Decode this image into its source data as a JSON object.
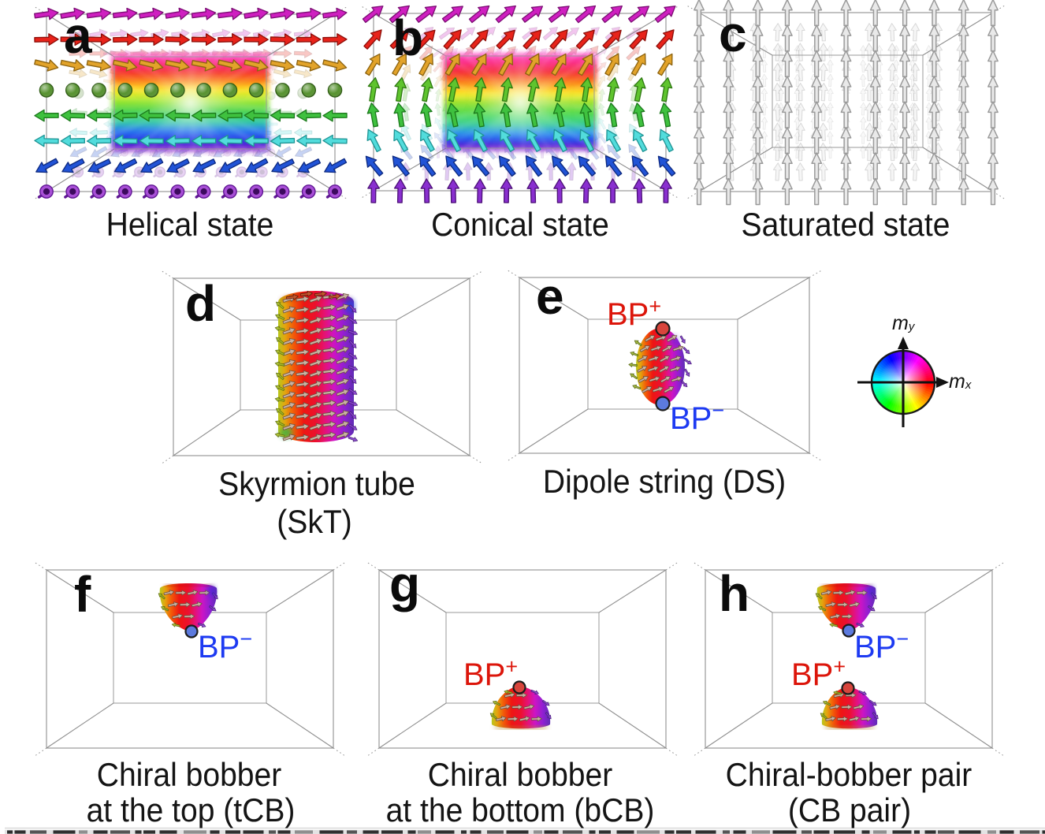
{
  "panels": [
    {
      "letter": "a",
      "caption_lines": [
        "Helical state"
      ],
      "state": "helical state",
      "spin_rows": [
        {
          "glyph": "arrow",
          "fill": "#cf1fc0",
          "edge": "#7c0e74",
          "angle": 8
        },
        {
          "glyph": "arrow",
          "fill": "#e8231a",
          "edge": "#8e0f0a",
          "angle": 0
        },
        {
          "glyph": "arrow",
          "fill": "#e2a32a",
          "edge": "#8e6410",
          "angle": -12
        },
        {
          "glyph": "sphere-out",
          "fill": "#579230",
          "edge": "#2f5c14",
          "angle": 0
        },
        {
          "glyph": "arrow",
          "fill": "#3fc13f",
          "edge": "#1c7a1c",
          "angle": 180
        },
        {
          "glyph": "arrow",
          "fill": "#52dcdc",
          "edge": "#1f9595",
          "angle": 180
        },
        {
          "glyph": "arrow",
          "fill": "#2153d6",
          "edge": "#0e2a80",
          "angle": 207
        },
        {
          "glyph": "sphere-in",
          "fill": "#a84fd6",
          "edge": "#5f1693",
          "angle": 0
        }
      ]
    },
    {
      "letter": "b",
      "caption_lines": [
        "Conical state"
      ],
      "state": "conical state",
      "spin_rows": [
        {
          "glyph": "arrow",
          "fill": "#cf1fc0",
          "edge": "#7c0e74",
          "angle": 38
        },
        {
          "glyph": "arrow",
          "fill": "#e8231a",
          "edge": "#8e0f0a",
          "angle": 47
        },
        {
          "glyph": "arrow",
          "fill": "#e2a32a",
          "edge": "#8e6410",
          "angle": 60
        },
        {
          "glyph": "arrow",
          "fill": "#5fc42e",
          "edge": "#2f7a12",
          "angle": 80
        },
        {
          "glyph": "arrow",
          "fill": "#3fc13f",
          "edge": "#1c7a1c",
          "angle": 100
        },
        {
          "glyph": "arrow",
          "fill": "#52dcdc",
          "edge": "#1f9595",
          "angle": 118
        },
        {
          "glyph": "arrow",
          "fill": "#2153d6",
          "edge": "#0e2a80",
          "angle": 128
        },
        {
          "glyph": "arrow",
          "fill": "#8a2fd0",
          "edge": "#4d1278",
          "angle": 90
        }
      ]
    },
    {
      "letter": "c",
      "caption_lines": [
        "Saturated state"
      ],
      "state": "saturated state",
      "spin_rows": [
        {
          "glyph": "arrow",
          "fill": "#e9e9e9",
          "edge": "#9a9a9a",
          "angle": 90
        },
        {
          "glyph": "arrow",
          "fill": "#e9e9e9",
          "edge": "#9a9a9a",
          "angle": 90
        },
        {
          "glyph": "arrow",
          "fill": "#e9e9e9",
          "edge": "#9a9a9a",
          "angle": 90
        },
        {
          "glyph": "arrow",
          "fill": "#e9e9e9",
          "edge": "#9a9a9a",
          "angle": 90
        },
        {
          "glyph": "arrow",
          "fill": "#e9e9e9",
          "edge": "#9a9a9a",
          "angle": 90
        },
        {
          "glyph": "arrow",
          "fill": "#e9e9e9",
          "edge": "#9a9a9a",
          "angle": 90
        },
        {
          "glyph": "arrow",
          "fill": "#e9e9e9",
          "edge": "#9a9a9a",
          "angle": 90
        },
        {
          "glyph": "arrow",
          "fill": "#e9e9e9",
          "edge": "#9a9a9a",
          "angle": 90
        }
      ]
    },
    {
      "letter": "d",
      "caption_lines": [
        "Skyrmion tube",
        "(SkT)"
      ],
      "state": "skyrmion tube"
    },
    {
      "letter": "e",
      "caption_lines": [
        "Dipole string (DS)"
      ],
      "state": "dipole string",
      "markers": [
        {
          "text": "BP",
          "sign": "+",
          "color": "#dc150a",
          "position": "top"
        },
        {
          "text": "BP",
          "sign": "−",
          "color": "#1d3af2",
          "position": "bottom"
        }
      ]
    },
    {
      "letter": "f",
      "caption_lines": [
        "Chiral bobber",
        "at the top (tCB)"
      ],
      "state": "chiral bobber at the top",
      "markers": [
        {
          "text": "BP",
          "sign": "−",
          "color": "#1d3af2",
          "position": "bottom"
        }
      ]
    },
    {
      "letter": "g",
      "caption_lines": [
        "Chiral bobber",
        "at the bottom (bCB)"
      ],
      "state": "chiral bobber at the bottom",
      "markers": [
        {
          "text": "BP",
          "sign": "+",
          "color": "#dc150a",
          "position": "top"
        }
      ]
    },
    {
      "letter": "h",
      "caption_lines": [
        "Chiral-bobber pair",
        "(CB pair)"
      ],
      "state": "chiral-bobber pair",
      "markers": [
        {
          "text": "BP",
          "sign": "−",
          "color": "#1d3af2",
          "position": "top-blob"
        },
        {
          "text": "BP",
          "sign": "+",
          "color": "#dc150a",
          "position": "bottom-blob"
        }
      ]
    }
  ],
  "color_wheel": {
    "x_axis": {
      "label": "m",
      "sub": "x"
    },
    "y_axis": {
      "label": "m",
      "sub": "y"
    },
    "meaning": "in-plane magnetization direction to hue"
  },
  "colors": {
    "bp_plus": "#dc150a",
    "bp_minus": "#1d3af2",
    "box_line": "#8f8f8f",
    "text": "#141414"
  }
}
